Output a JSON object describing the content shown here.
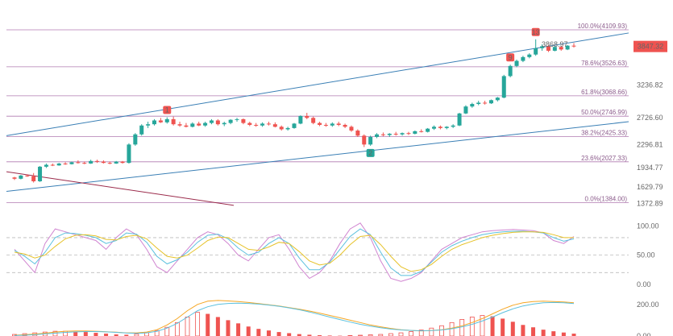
{
  "chart_data": [
    {
      "type": "candlestick",
      "panel": "price",
      "y_axis_ticks": [
        3847.32,
        3236.82,
        2726.6,
        2296.81,
        1934.77,
        1629.79,
        1372.89
      ],
      "ylim": [
        1300,
        4250
      ],
      "last_price": 3847.32,
      "fib_levels": [
        {
          "label": "100.0%(4109.93)",
          "value": 4109.93
        },
        {
          "label": "78.6%(3526.63)",
          "value": 3526.63
        },
        {
          "label": "61.8%(3068.66)",
          "value": 3068.66
        },
        {
          "label": "50.0%(2746.99)",
          "value": 2746.99
        },
        {
          "label": "38.2%(2425.33)",
          "value": 2425.33
        },
        {
          "label": "23.6%(2027.33)",
          "value": 2027.33
        },
        {
          "label": "0.0%(1384.00)",
          "value": 1384.0
        }
      ],
      "markers": [
        {
          "label": "1",
          "index": 24
        },
        {
          "label": "2",
          "index": 56
        },
        {
          "label": "9",
          "index": 78
        },
        {
          "label": "13",
          "index": 82
        }
      ],
      "annotations": [
        {
          "text": "3868.97",
          "value": 3868.97
        }
      ],
      "candles": [
        [
          1780,
          1790,
          1740,
          1760
        ],
        [
          1760,
          1820,
          1750,
          1810
        ],
        [
          1810,
          1830,
          1790,
          1800
        ],
        [
          1800,
          1850,
          1700,
          1720
        ],
        [
          1720,
          1960,
          1710,
          1950
        ],
        [
          1950,
          2000,
          1930,
          1980
        ],
        [
          1980,
          2000,
          1960,
          1970
        ],
        [
          1970,
          2010,
          1965,
          2000
        ],
        [
          2000,
          2020,
          1980,
          1990
        ],
        [
          1990,
          2030,
          1985,
          2020
        ],
        [
          2020,
          2050,
          2000,
          2010
        ],
        [
          2010,
          2030,
          1990,
          2000
        ],
        [
          2000,
          2060,
          1995,
          2040
        ],
        [
          2040,
          2060,
          2010,
          2030
        ],
        [
          2030,
          2050,
          2000,
          2010
        ],
        [
          2010,
          2030,
          1990,
          2000
        ],
        [
          2000,
          2040,
          1995,
          2030
        ],
        [
          2030,
          2040,
          2000,
          2010
        ],
        [
          2010,
          2320,
          2000,
          2300
        ],
        [
          2300,
          2480,
          2280,
          2460
        ],
        [
          2460,
          2620,
          2440,
          2600
        ],
        [
          2600,
          2660,
          2560,
          2620
        ],
        [
          2620,
          2700,
          2600,
          2680
        ],
        [
          2680,
          2720,
          2640,
          2650
        ],
        [
          2650,
          2730,
          2630,
          2700
        ],
        [
          2700,
          2740,
          2600,
          2620
        ],
        [
          2620,
          2660,
          2580,
          2600
        ],
        [
          2600,
          2640,
          2570,
          2580
        ],
        [
          2580,
          2650,
          2570,
          2630
        ],
        [
          2630,
          2660,
          2590,
          2600
        ],
        [
          2600,
          2660,
          2580,
          2640
        ],
        [
          2640,
          2700,
          2620,
          2680
        ],
        [
          2680,
          2700,
          2600,
          2620
        ],
        [
          2620,
          2660,
          2590,
          2640
        ],
        [
          2640,
          2700,
          2620,
          2690
        ],
        [
          2690,
          2720,
          2660,
          2700
        ],
        [
          2700,
          2710,
          2620,
          2640
        ],
        [
          2640,
          2660,
          2590,
          2610
        ],
        [
          2610,
          2640,
          2580,
          2600
        ],
        [
          2600,
          2650,
          2580,
          2630
        ],
        [
          2630,
          2660,
          2600,
          2620
        ],
        [
          2620,
          2650,
          2570,
          2580
        ],
        [
          2580,
          2600,
          2520,
          2540
        ],
        [
          2540,
          2580,
          2520,
          2560
        ],
        [
          2560,
          2640,
          2550,
          2630
        ],
        [
          2630,
          2760,
          2620,
          2750
        ],
        [
          2750,
          2800,
          2700,
          2720
        ],
        [
          2720,
          2740,
          2620,
          2640
        ],
        [
          2640,
          2660,
          2590,
          2610
        ],
        [
          2610,
          2640,
          2580,
          2600
        ],
        [
          2600,
          2650,
          2580,
          2630
        ],
        [
          2630,
          2660,
          2590,
          2610
        ],
        [
          2610,
          2630,
          2560,
          2580
        ],
        [
          2580,
          2600,
          2500,
          2520
        ],
        [
          2520,
          2540,
          2420,
          2440
        ],
        [
          2440,
          2460,
          2260,
          2300
        ],
        [
          2300,
          2440,
          2280,
          2420
        ],
        [
          2420,
          2480,
          2400,
          2460
        ],
        [
          2460,
          2490,
          2430,
          2450
        ],
        [
          2450,
          2480,
          2420,
          2470
        ],
        [
          2470,
          2500,
          2440,
          2460
        ],
        [
          2460,
          2490,
          2440,
          2480
        ],
        [
          2480,
          2500,
          2450,
          2470
        ],
        [
          2470,
          2520,
          2460,
          2510
        ],
        [
          2510,
          2540,
          2490,
          2500
        ],
        [
          2500,
          2560,
          2490,
          2550
        ],
        [
          2550,
          2600,
          2530,
          2580
        ],
        [
          2580,
          2600,
          2540,
          2560
        ],
        [
          2560,
          2590,
          2540,
          2580
        ],
        [
          2580,
          2620,
          2560,
          2600
        ],
        [
          2600,
          2800,
          2590,
          2790
        ],
        [
          2790,
          2920,
          2780,
          2900
        ],
        [
          2900,
          2960,
          2880,
          2940
        ],
        [
          2940,
          2990,
          2920,
          2960
        ],
        [
          2960,
          2990,
          2930,
          2950
        ],
        [
          2950,
          3010,
          2940,
          3000
        ],
        [
          3000,
          3050,
          2980,
          3040
        ],
        [
          3040,
          3400,
          3030,
          3380
        ],
        [
          3380,
          3560,
          3360,
          3540
        ],
        [
          3540,
          3640,
          3520,
          3620
        ],
        [
          3620,
          3700,
          3600,
          3680
        ],
        [
          3680,
          3740,
          3660,
          3720
        ],
        [
          3720,
          3960,
          3700,
          3820
        ],
        [
          3820,
          3880,
          3780,
          3850
        ],
        [
          3850,
          3870,
          3760,
          3780
        ],
        [
          3780,
          3860,
          3770,
          3840
        ],
        [
          3840,
          3860,
          3780,
          3800
        ],
        [
          3800,
          3870,
          3790,
          3860
        ],
        [
          3860,
          3900,
          3830,
          3847.32
        ]
      ]
    },
    {
      "type": "line",
      "panel": "oscillator",
      "y_axis_ticks": [
        100.0,
        50.0,
        0.0
      ],
      "ylim": [
        -10,
        120
      ],
      "series": [
        {
          "color": "#d084d0",
          "values": [
            60,
            40,
            20,
            70,
            95,
            90,
            85,
            80,
            75,
            60,
            80,
            95,
            85,
            60,
            30,
            20,
            40,
            60,
            80,
            90,
            85,
            70,
            50,
            40,
            60,
            80,
            85,
            60,
            30,
            10,
            20,
            40,
            70,
            95,
            105,
            80,
            40,
            10,
            5,
            10,
            20,
            40,
            60,
            70,
            80,
            85,
            90,
            92,
            93,
            94,
            93,
            92,
            88,
            75,
            70,
            82
          ]
        },
        {
          "color": "#5bc0de",
          "values": [
            58,
            48,
            35,
            55,
            80,
            88,
            87,
            84,
            80,
            70,
            75,
            88,
            86,
            72,
            48,
            35,
            42,
            55,
            72,
            84,
            86,
            78,
            62,
            50,
            55,
            70,
            80,
            70,
            45,
            25,
            25,
            38,
            60,
            82,
            95,
            85,
            55,
            28,
            15,
            15,
            22,
            38,
            55,
            66,
            74,
            80,
            85,
            88,
            90,
            91,
            91,
            90,
            88,
            80,
            74,
            78
          ]
        },
        {
          "color": "#e6c229",
          "values": [
            55,
            52,
            45,
            50,
            65,
            78,
            84,
            85,
            83,
            77,
            76,
            82,
            84,
            78,
            62,
            48,
            45,
            50,
            62,
            75,
            81,
            80,
            70,
            60,
            58,
            64,
            72,
            70,
            56,
            40,
            33,
            36,
            50,
            68,
            82,
            84,
            68,
            48,
            30,
            22,
            25,
            34,
            48,
            60,
            68,
            74,
            80,
            84,
            87,
            89,
            90,
            90,
            89,
            85,
            80,
            80
          ]
        }
      ],
      "dashed_levels": [
        80,
        50,
        20
      ]
    },
    {
      "type": "bar",
      "panel": "macd",
      "y_axis_ticks": [
        200.0,
        0.0
      ],
      "ylim": [
        0,
        260
      ],
      "histogram": [
        10,
        15,
        20,
        25,
        30,
        30,
        28,
        25,
        20,
        15,
        10,
        8,
        12,
        20,
        35,
        55,
        85,
        120,
        150,
        140,
        120,
        100,
        80,
        60,
        45,
        35,
        25,
        18,
        12,
        8,
        5,
        3,
        2,
        3,
        5,
        8,
        10,
        15,
        20,
        28,
        38,
        50,
        65,
        85,
        105,
        120,
        130,
        125,
        110,
        90,
        70,
        55,
        40,
        30,
        22,
        15
      ],
      "signal_line": [
        5,
        8,
        12,
        18,
        25,
        30,
        32,
        32,
        30,
        27,
        24,
        20,
        20,
        25,
        40,
        70,
        110,
        160,
        200,
        220,
        225,
        222,
        218,
        212,
        205,
        198,
        190,
        180,
        170,
        158,
        145,
        130,
        115,
        100,
        85,
        70,
        58,
        48,
        40,
        35,
        32,
        35,
        40,
        50,
        65,
        85,
        110,
        140,
        170,
        195,
        210,
        218,
        220,
        218,
        215,
        210
      ],
      "macd_line": [
        3,
        5,
        8,
        13,
        18,
        23,
        26,
        28,
        28,
        26,
        23,
        19,
        17,
        20,
        30,
        50,
        80,
        120,
        160,
        185,
        200,
        206,
        208,
        206,
        202,
        196,
        188,
        178,
        166,
        152,
        136,
        120,
        104,
        88,
        74,
        62,
        52,
        44,
        38,
        35,
        33,
        34,
        38,
        46,
        58,
        74,
        95,
        120,
        148,
        172,
        190,
        202,
        210,
        212,
        210,
        205
      ]
    }
  ]
}
